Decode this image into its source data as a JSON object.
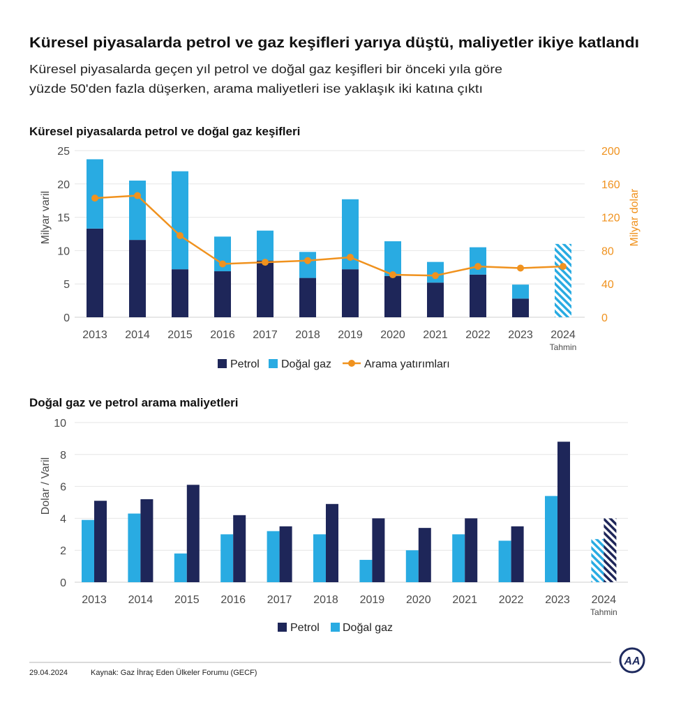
{
  "header": {
    "title": "Küresel piyasalarda petrol ve gaz keşifleri yarıya düştü, maliyetler ikiye katlandı",
    "subtitle_lines": [
      "Küresel piyasalarda geçen yıl petrol ve doğal gaz keşifleri bir önceki yıla göre",
      "yüzde 50'den fazla düşerken, arama maliyetleri ise yaklaşık iki katına çıktı"
    ]
  },
  "colors": {
    "petrol": "#1e2659",
    "gas": "#29abe2",
    "investment": "#f0921e",
    "grid": "#e6e6e6",
    "baseline": "#cfcfcf",
    "logo": "#1e2a5e"
  },
  "chart_data": [
    {
      "type": "bar",
      "stacked": true,
      "title": "Küresel piyasalarda petrol ve doğal gaz keşifleri",
      "categories": [
        "2013",
        "2014",
        "2015",
        "2016",
        "2017",
        "2018",
        "2019",
        "2020",
        "2021",
        "2022",
        "2023",
        "2024"
      ],
      "series": [
        {
          "name": "Petrol",
          "type": "bar",
          "values": [
            13.3,
            11.6,
            7.2,
            6.9,
            8.5,
            5.9,
            7.2,
            6.2,
            5.2,
            6.4,
            2.8,
            null
          ]
        },
        {
          "name": "Doğal gaz",
          "type": "bar",
          "values": [
            10.4,
            8.9,
            14.7,
            5.2,
            4.5,
            3.9,
            10.5,
            5.2,
            3.1,
            4.1,
            2.1,
            null
          ]
        },
        {
          "name": "Arama yatırımları",
          "type": "line",
          "secondary_axis": true,
          "values": [
            143,
            146,
            98,
            64,
            66,
            68,
            72,
            51,
            50,
            61,
            59,
            61
          ]
        }
      ],
      "forecast": {
        "category": "2024",
        "label": "Tahmin",
        "total": 11.0
      },
      "ylabel": "Milyar varil",
      "ylim": [
        0,
        25
      ],
      "yticks": [
        0,
        5,
        10,
        15,
        20,
        25
      ],
      "y2label": "Milyar dolar",
      "y2lim": [
        0,
        200
      ],
      "y2ticks": [
        0,
        40,
        80,
        120,
        160,
        200
      ],
      "grid": true,
      "legend": "bottom"
    },
    {
      "type": "bar",
      "title": "Doğal gaz ve petrol arama maliyetleri",
      "categories": [
        "2013",
        "2014",
        "2015",
        "2016",
        "2017",
        "2018",
        "2019",
        "2020",
        "2021",
        "2022",
        "2023",
        "2024"
      ],
      "series": [
        {
          "name": "Petrol",
          "values": [
            5.1,
            5.2,
            6.1,
            4.2,
            3.5,
            4.9,
            4.0,
            3.4,
            4.0,
            3.5,
            8.8,
            4.0
          ]
        },
        {
          "name": "Doğal gaz",
          "values": [
            3.9,
            4.3,
            1.8,
            3.0,
            3.2,
            3.0,
            1.4,
            2.0,
            3.0,
            2.6,
            5.4,
            2.7
          ]
        }
      ],
      "forecast": {
        "category": "2024",
        "label": "Tahmin"
      },
      "ylabel": "Dolar / Varil",
      "ylim": [
        0,
        10
      ],
      "yticks": [
        0,
        2,
        4,
        6,
        8,
        10
      ],
      "grid": true,
      "legend": "bottom"
    }
  ],
  "footer": {
    "date": "29.04.2024",
    "source": "Kaynak: Gaz İhraç Eden Ülkeler Forumu (GECF)",
    "logo_text": "AA"
  }
}
